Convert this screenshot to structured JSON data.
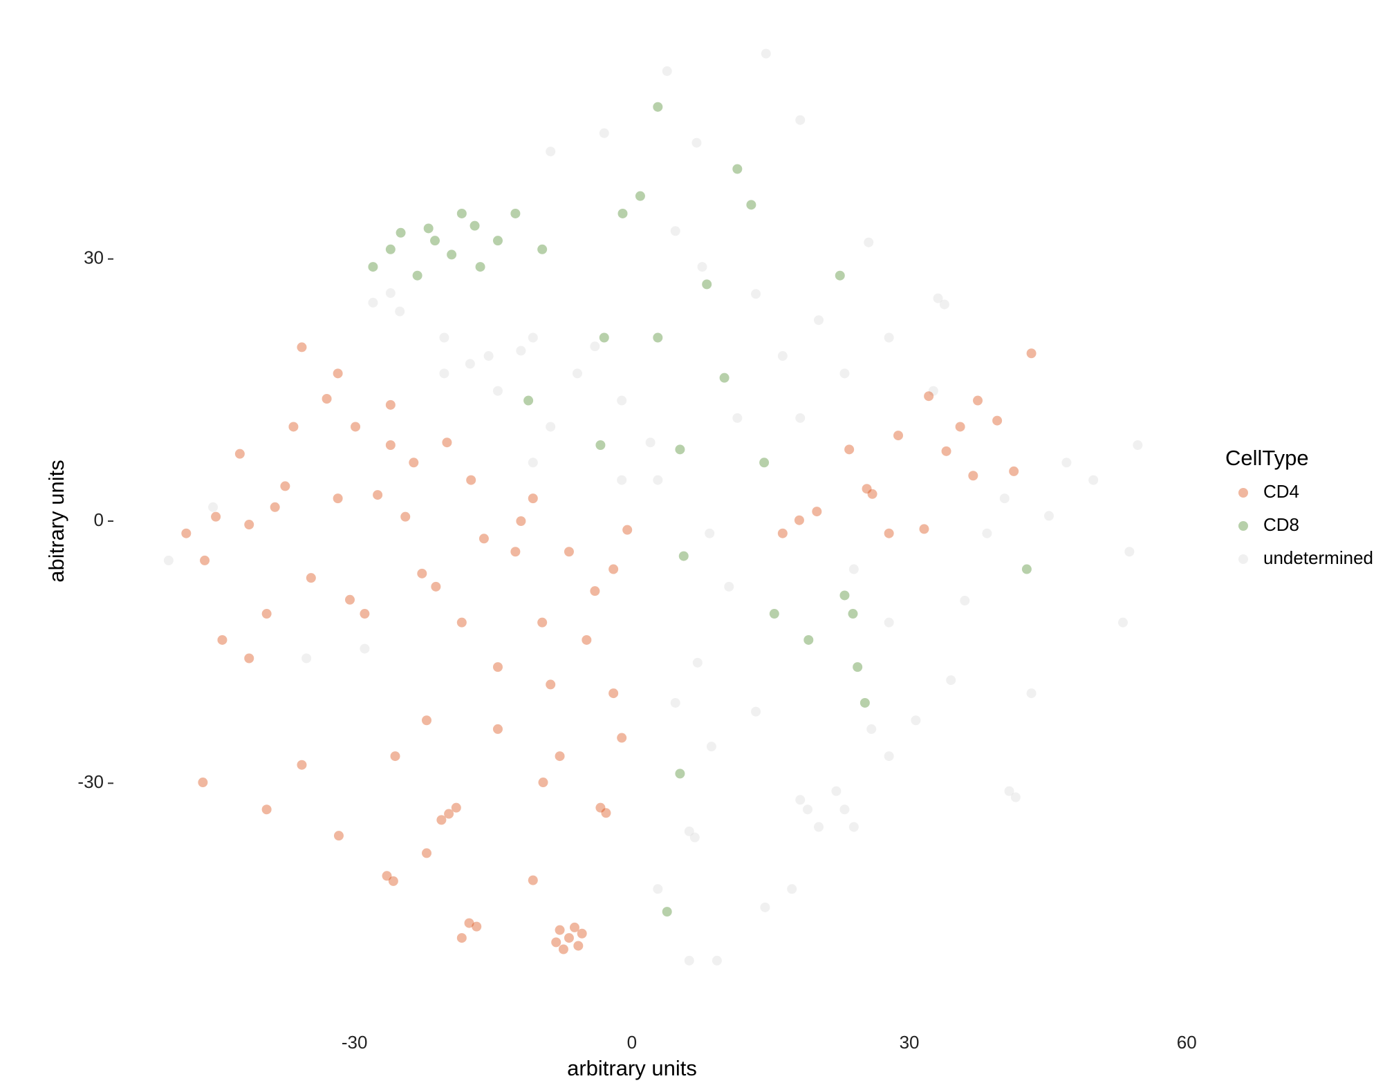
{
  "chart_data": {
    "type": "scatter",
    "x_label": "arbitrary units",
    "y_label": "abitrary units",
    "xlim": [
      -56,
      62
    ],
    "ylim": [
      -56,
      56
    ],
    "xticks": [
      -30,
      0,
      30,
      60
    ],
    "yticks": [
      -30,
      0,
      30
    ],
    "legend": "right",
    "legend_title": "CellType",
    "opacity": 0.4,
    "series": [
      {
        "name": "CD4",
        "color": "#d94a0f",
        "x": [
          -6.8,
          -7.8,
          -5.8,
          -6.2,
          -7.4,
          -5.4,
          -8.2,
          -19.8,
          -20.6,
          -19.0,
          -26.5,
          -25.8,
          -3.4,
          -2.8,
          -46.4,
          -16.8,
          -17.6,
          25.4,
          26.0,
          31.6,
          43.2,
          37.4,
          35.5,
          32.1,
          28.8,
          41.3,
          36.9,
          23.5,
          18.1,
          20.0,
          16.3,
          27.8,
          39.5,
          34.0,
          -35.7,
          -31.8,
          -36.6,
          -26.1,
          -23.6,
          -31.8,
          -38.6,
          -42.4,
          -48.2,
          -46.2,
          -41.4,
          -34.7,
          -28.9,
          -22.7,
          -21.2,
          -18.4,
          -39.5,
          -44.3,
          -41.4,
          -17.4,
          -10.7,
          -12.6,
          -6.8,
          -2.0,
          -4.9,
          -9.7,
          -14.5,
          -8.8,
          -2.0,
          -14.5,
          -7.8,
          -22.2,
          -25.6,
          -35.7,
          -39.5,
          -31.7,
          -22.2,
          -10.7,
          -18.4,
          -1.1,
          -9.6,
          -26.1,
          -29.9,
          -33.0,
          -37.5,
          -27.5,
          -24.5,
          -30.5,
          -45.0,
          -12.0,
          -4.0,
          -16.0,
          -20.0,
          -0.5
        ],
        "y": [
          -47.7,
          -46.8,
          -48.6,
          -46.5,
          -49.0,
          -47.2,
          -48.2,
          -33.5,
          -34.2,
          -32.8,
          -40.6,
          -41.2,
          -32.8,
          -33.4,
          -29.9,
          -46.4,
          -46.0,
          3.7,
          3.1,
          -0.9,
          19.2,
          13.8,
          10.8,
          14.3,
          9.8,
          5.7,
          5.2,
          8.2,
          0.1,
          1.1,
          -1.4,
          -1.4,
          11.5,
          8.0,
          19.9,
          16.9,
          10.8,
          8.7,
          6.7,
          2.6,
          1.6,
          7.7,
          -1.4,
          -4.5,
          -0.4,
          -6.5,
          -10.6,
          -6.0,
          -7.5,
          -11.6,
          -10.6,
          -13.6,
          -15.7,
          4.7,
          2.6,
          -3.5,
          -3.5,
          -5.5,
          -13.6,
          -11.6,
          -16.7,
          -18.7,
          -19.7,
          -23.8,
          -26.9,
          -22.8,
          -26.9,
          -27.9,
          -33.0,
          -36.0,
          -38.0,
          -41.1,
          -47.7,
          -24.8,
          -29.9,
          13.3,
          10.8,
          14.0,
          4.0,
          3.0,
          0.5,
          -9.0,
          0.5,
          0.0,
          -8.0,
          -2.0,
          9.0,
          -1.0
        ]
      },
      {
        "name": "CD8",
        "color": "#4a8a2a",
        "x": [
          -21.3,
          -26.1,
          -16.4,
          -18.4,
          -12.6,
          -28.0,
          -23.2,
          -14.5,
          -22.0,
          -19.5,
          -25.0,
          -17.0,
          0.9,
          -1.0,
          11.4,
          12.9,
          2.8,
          23.9,
          23.0,
          24.4,
          19.1,
          15.4,
          2.8,
          -3.0,
          10.0,
          22.5,
          -3.4,
          5.2,
          14.3,
          5.6,
          42.7,
          25.2,
          5.2,
          3.8,
          -11.2,
          8.1,
          -9.7
        ],
        "y": [
          32.1,
          31.1,
          29.1,
          35.2,
          35.2,
          29.1,
          28.1,
          32.1,
          33.5,
          30.5,
          33.0,
          33.8,
          37.2,
          35.2,
          40.3,
          36.2,
          47.4,
          -10.6,
          -8.5,
          -16.7,
          -13.6,
          -10.6,
          21.0,
          21.0,
          16.4,
          28.1,
          8.7,
          8.2,
          6.7,
          -4.0,
          -5.5,
          -20.8,
          -28.9,
          -44.7,
          13.8,
          27.1,
          31.1
        ]
      },
      {
        "name": "undetermined",
        "color": "#d9d9d9",
        "x": [
          18.2,
          22.1,
          24.0,
          20.2,
          19.0,
          23.0,
          40.8,
          41.5,
          6.2,
          6.8,
          6.2,
          33.1,
          33.8,
          36.0,
          53.1,
          34.5,
          18.2,
          25.6,
          14.5,
          7.1,
          8.4,
          -15.5,
          -20.3,
          -10.7,
          -5.9,
          -1.1,
          -25.1,
          -28.0,
          4.7,
          7.0,
          -3.0,
          -8.8,
          3.8,
          7.6,
          13.4,
          16.3,
          11.4,
          2.8,
          -1.1,
          -8.8,
          10.5,
          13.4,
          8.6,
          4.7,
          25.9,
          30.7,
          27.8,
          47.0,
          49.9,
          54.7,
          45.1,
          53.8,
          40.3,
          38.4,
          24.0,
          27.8,
          43.2,
          32.6,
          23.0,
          18.2,
          20.2,
          27.8,
          17.3,
          14.4,
          2.8,
          9.2,
          -50.1,
          -45.3,
          -35.2,
          -28.9,
          -26.1,
          -20.3,
          -14.5,
          -10.7,
          -17.5,
          -12.0,
          -4.0,
          2.0
        ],
        "y": [
          -31.9,
          -30.9,
          -35.0,
          -35.0,
          -33.0,
          -33.0,
          -30.9,
          -31.6,
          -35.5,
          -36.2,
          -50.3,
          25.5,
          24.8,
          -9.1,
          -11.6,
          -18.2,
          45.9,
          31.9,
          53.5,
          -16.2,
          -1.4,
          18.9,
          21.0,
          21.0,
          16.9,
          13.8,
          24.0,
          25.0,
          33.2,
          43.3,
          44.4,
          42.3,
          51.5,
          29.1,
          26.0,
          18.9,
          11.8,
          4.7,
          4.7,
          10.8,
          -7.5,
          -21.8,
          -25.8,
          -20.8,
          -23.8,
          -22.8,
          -26.9,
          6.7,
          4.7,
          8.7,
          0.6,
          -3.5,
          2.6,
          -1.4,
          -5.5,
          -11.6,
          -19.7,
          14.9,
          16.9,
          11.8,
          23.0,
          21.0,
          -42.1,
          -44.2,
          -42.1,
          -50.3,
          -4.5,
          1.6,
          -15.7,
          -14.6,
          26.1,
          16.9,
          14.9,
          6.7,
          18.0,
          19.5,
          20.0,
          9.0
        ]
      }
    ]
  }
}
